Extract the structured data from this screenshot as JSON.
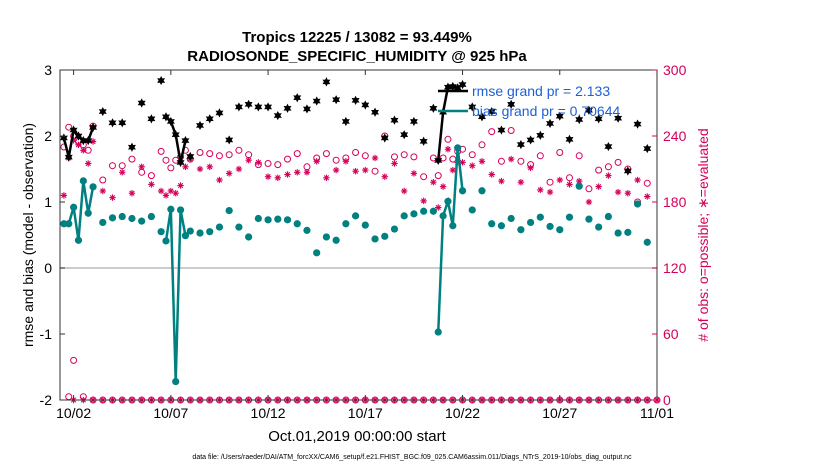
{
  "chart_data": {
    "type": "line",
    "title": "Tropics 12225 / 13082 = 93.449%",
    "subtitle": "RADIOSONDE_SPECIFIC_HUMIDITY @ 925 hPa",
    "ylabel": "rmse and bias (model - observation)",
    "ylabel_right": "# of obs: o=possible; ∗=evaluated",
    "xlabel": "Oct.01,2019 00:00:00 start",
    "footer": "data file: /Users/raeder/DAI/ATM_forcXX/CAM6_setup/f.e21.FHIST_BGC.f09_025.CAM6assim.011/Diags_NTrS_2019-10/obs_diag_output.nc",
    "xlim": [
      1.3,
      32
    ],
    "ylim": [
      -2,
      3
    ],
    "ylim_right": [
      0,
      300
    ],
    "xticks": [
      2,
      7,
      12,
      17,
      22,
      27,
      32
    ],
    "xtick_labels": [
      "10/02",
      "10/07",
      "10/12",
      "10/17",
      "10/22",
      "10/27",
      "11/01"
    ],
    "yticks": [
      -2,
      -1,
      0,
      1,
      2,
      3
    ],
    "yticks_right": [
      0,
      60,
      120,
      180,
      240,
      300
    ],
    "legend": {
      "rmse": "rmse grand pr = 2.133",
      "bias": "bias grand pr = 0.70644",
      "placement": "top-right"
    },
    "colors": {
      "rmse": "#000000",
      "bias": "#008080",
      "obs": "#d6005a",
      "zero_line": "#bbbbbb"
    },
    "x": [
      1.5,
      1.75,
      2.0,
      2.25,
      2.5,
      2.75,
      3.0,
      3.5,
      4.0,
      4.5,
      5.0,
      5.5,
      6.0,
      6.5,
      6.75,
      7.0,
      7.25,
      7.5,
      7.75,
      8.0,
      8.5,
      9.0,
      9.5,
      10.0,
      10.5,
      11.0,
      11.5,
      12.0,
      12.5,
      13.0,
      13.5,
      14.0,
      14.5,
      15.0,
      15.5,
      16.0,
      16.5,
      17.0,
      17.5,
      18.0,
      18.5,
      19.0,
      19.5,
      20.0,
      20.5,
      20.75,
      21.0,
      21.25,
      21.5,
      21.75,
      22.0,
      22.5,
      23.0,
      23.5,
      24.0,
      24.5,
      25.0,
      25.5,
      26.0,
      26.5,
      27.0,
      27.5,
      28.0,
      28.5,
      29.0,
      29.5,
      30.0,
      30.5,
      31.0,
      31.5
    ],
    "series": [
      {
        "name": "rmse",
        "marker": "star",
        "values": [
          1.97,
          1.68,
          2.09,
          2.0,
          1.93,
          1.93,
          2.13,
          2.37,
          2.2,
          2.2,
          1.83,
          2.5,
          2.26,
          2.84,
          2.29,
          2.22,
          2.02,
          1.6,
          1.93,
          1.69,
          2.16,
          2.26,
          2.35,
          1.94,
          2.44,
          2.48,
          2.44,
          2.44,
          2.31,
          2.42,
          2.58,
          2.41,
          2.53,
          2.82,
          2.55,
          2.22,
          2.54,
          2.47,
          2.36,
          1.97,
          2.24,
          2.02,
          2.22,
          1.92,
          2.42,
          1.63,
          2.36,
          2.74,
          2.75,
          2.73,
          2.78,
          2.44,
          2.29,
          2.37,
          2.09,
          2.48,
          1.87,
          1.94,
          2.01,
          2.19,
          2.3,
          1.95,
          2.25,
          2.39,
          2.26,
          1.84,
          2.27,
          1.47,
          2.18,
          1.81
        ],
        "connected": [
          [
            1.5,
            1.75,
            2.0,
            2.25,
            2.5,
            2.75,
            3.0
          ],
          [
            6.75,
            7.0,
            7.25,
            7.5,
            7.75
          ],
          [
            20.75,
            21.0,
            21.25,
            21.5,
            21.75,
            22.0
          ]
        ]
      },
      {
        "name": "bias",
        "marker": "circle-filled",
        "values": [
          0.67,
          0.67,
          0.92,
          0.42,
          1.32,
          0.83,
          1.23,
          0.69,
          0.76,
          0.78,
          0.75,
          0.71,
          0.78,
          0.55,
          0.41,
          0.89,
          -1.72,
          0.88,
          0.49,
          0.56,
          0.53,
          0.55,
          0.62,
          0.87,
          0.62,
          0.47,
          0.75,
          0.73,
          0.74,
          0.73,
          0.67,
          0.57,
          0.23,
          0.47,
          0.42,
          0.67,
          0.79,
          0.65,
          0.44,
          0.48,
          0.59,
          0.79,
          0.82,
          0.86,
          0.86,
          -0.97,
          0.79,
          1.01,
          0.64,
          1.82,
          1.17,
          0.88,
          1.17,
          0.67,
          0.64,
          0.75,
          0.58,
          0.69,
          0.77,
          0.63,
          0.58,
          0.77,
          1.24,
          0.74,
          0.62,
          0.78,
          0.53,
          0.54,
          0.97,
          0.39
        ],
        "connected": [
          [
            1.5,
            1.75,
            2.0,
            2.25,
            2.5,
            2.75,
            3.0
          ],
          [
            6.75,
            7.0,
            7.25,
            7.5,
            7.75
          ],
          [
            20.75,
            21.0,
            21.25,
            21.5,
            21.75,
            22.0
          ]
        ]
      },
      {
        "name": "obs_possible",
        "marker": "circle-open",
        "axis": "right",
        "values": [
          230,
          248,
          240,
          235,
          232,
          227,
          249,
          200,
          213,
          213,
          219,
          207,
          204,
          226,
          218,
          211,
          218,
          221,
          227,
          219,
          225,
          224,
          222,
          223,
          227,
          223,
          214,
          215,
          214,
          219,
          224,
          212,
          220,
          224,
          218,
          220,
          225,
          222,
          208,
          240,
          221,
          223,
          221,
          203,
          220,
          204,
          220,
          237,
          219,
          226,
          228,
          223,
          232,
          244,
          217,
          245,
          217,
          214,
          222,
          198,
          225,
          202,
          222,
          192,
          209,
          212,
          216,
          210,
          180,
          197
        ],
        "low_values": [
          [
            1.75,
            3
          ],
          [
            2.0,
            36
          ],
          [
            2.5,
            3
          ]
        ]
      },
      {
        "name": "obs_evaluated",
        "marker": "asterisk",
        "axis": "right",
        "values": [
          186,
          220,
          236,
          232,
          227,
          215,
          235,
          190,
          184,
          207,
          188,
          212,
          196,
          190,
          186,
          190,
          188,
          195,
          212,
          219,
          210,
          212,
          200,
          206,
          210,
          218,
          216,
          203,
          202,
          205,
          207,
          207,
          217,
          202,
          209,
          217,
          208,
          209,
          220,
          203,
          215,
          190,
          206,
          181,
          198,
          175,
          194,
          228,
          209,
          216,
          216,
          213,
          217,
          205,
          199,
          219,
          198,
          211,
          191,
          189,
          200,
          196,
          199,
          180,
          194,
          204,
          189,
          188,
          200,
          185
        ],
        "low_values": [
          [
            1.75,
            2
          ],
          [
            2.0,
            2
          ],
          [
            2.5,
            2
          ]
        ]
      }
    ]
  }
}
